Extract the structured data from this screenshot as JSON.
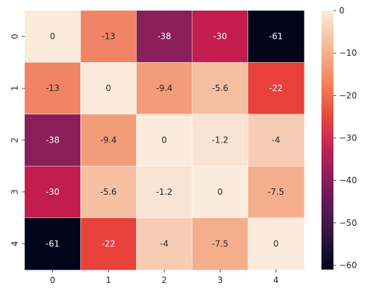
{
  "chart_data": {
    "type": "heatmap",
    "title": "",
    "xlabel": "",
    "ylabel": "",
    "x_categories": [
      "0",
      "1",
      "2",
      "3",
      "4"
    ],
    "y_categories": [
      "0",
      "1",
      "2",
      "3",
      "4"
    ],
    "values": [
      [
        0,
        -13,
        -38,
        -30,
        -61
      ],
      [
        -13,
        0,
        -9.4,
        -5.6,
        -22
      ],
      [
        -38,
        -9.4,
        0,
        -1.2,
        -4
      ],
      [
        -30,
        -5.6,
        -1.2,
        0,
        -7.5
      ],
      [
        -61,
        -22,
        -4,
        -7.5,
        0
      ]
    ],
    "annotations": [
      [
        "0",
        "-13",
        "-38",
        "-30",
        "-61"
      ],
      [
        "-13",
        "0",
        "-9.4",
        "-5.6",
        "-22"
      ],
      [
        "-38",
        "-9.4",
        "0",
        "-1.2",
        "-4"
      ],
      [
        "-30",
        "-5.6",
        "-1.2",
        "0",
        "-7.5"
      ],
      [
        "-61",
        "-22",
        "-4",
        "-7.5",
        "0"
      ]
    ],
    "colormap": "rocket",
    "vmin": -61,
    "vmax": 0,
    "colorbar": {
      "ticks": [
        "0",
        "−10",
        "−20",
        "−30",
        "−40",
        "−50",
        "−60"
      ],
      "tick_values": [
        0,
        -10,
        -20,
        -30,
        -40,
        -50,
        -60
      ],
      "placement": "right"
    },
    "cell_colors": {
      "0": "#faebdd",
      "-1.2": "#f9e3d2",
      "-4": "#f6cdb2",
      "-5.6": "#f6bfa1",
      "-7.5": "#f5ae8c",
      "-9.4": "#f39c78",
      "-13": "#f08464",
      "-22": "#e8413c",
      "-30": "#c31d50",
      "-38": "#891e5b",
      "-61": "#03051a"
    },
    "grid": false
  }
}
